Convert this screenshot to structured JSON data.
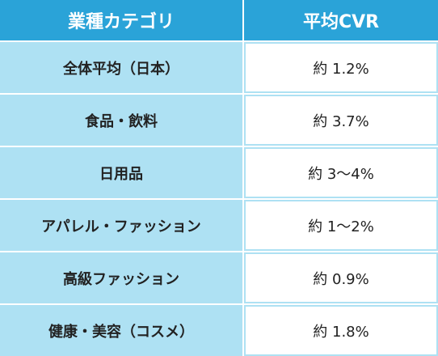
{
  "table": {
    "headers": [
      "業種カテゴリ",
      "平均CVR"
    ],
    "rows": [
      {
        "category": "全体平均（日本）",
        "cvr": "約 1.2%"
      },
      {
        "category": "食品・飲料",
        "cvr": "約 3.7%"
      },
      {
        "category": "日用品",
        "cvr": "約 3〜4%"
      },
      {
        "category": "アパレル・ファッション",
        "cvr": "約 1〜2%"
      },
      {
        "category": "高級ファッション",
        "cvr": "約 0.9%"
      },
      {
        "category": "健康・美容（コスメ）",
        "cvr": "約 1.8%"
      }
    ],
    "colors": {
      "header_bg": "#2aa3d8",
      "header_text": "#ffffff",
      "category_bg": "#aee1f3",
      "value_border": "#aee1f3",
      "text": "#222222"
    }
  }
}
